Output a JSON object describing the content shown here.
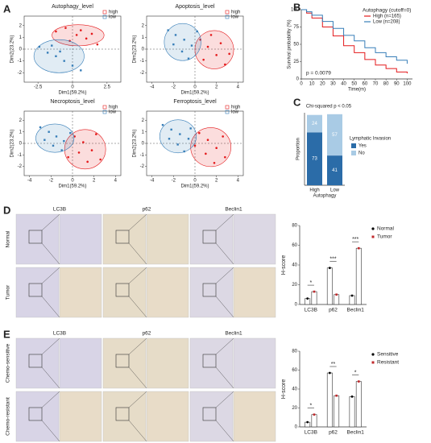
{
  "panels": [
    "A",
    "B",
    "C",
    "D",
    "E"
  ],
  "ihc": [
    {
      "columns": [
        "LC3B",
        "p62",
        "Beclin1"
      ],
      "rows": [
        "Normal",
        "Tumor"
      ]
    },
    {
      "columns": [
        "LC3B",
        "p62",
        "Beclin1"
      ],
      "rows": [
        "Chemo-sensitive",
        "Chemo-resistant"
      ]
    }
  ],
  "chart_data": [
    {
      "type": "scatter",
      "title": "Autophagy_level",
      "xlabel": "Dim1(59.2%)",
      "ylabel": "Dim2(23.2%)",
      "xlim": [
        -3.5,
        3.5
      ],
      "ylim": [
        -2.8,
        2.8
      ],
      "xticks": [
        -2.5,
        0,
        2.5
      ],
      "yticks": [
        -2,
        -1,
        0,
        1,
        2
      ],
      "series": [
        {
          "name": "high",
          "color": "#e41a1c",
          "x": [
            -1.2,
            -0.5,
            0.3,
            1,
            1.8,
            0.6,
            -0.2,
            1.4
          ],
          "values": [
            1.5,
            1.8,
            1.2,
            0.9,
            0.4,
            1.6,
            0.7,
            1.3
          ]
        },
        {
          "name": "low",
          "color": "#377eb8",
          "x": [
            -2.4,
            -1.8,
            -1.2,
            -0.6,
            0,
            0.6,
            -1.5,
            -0.9
          ],
          "values": [
            0.2,
            -0.3,
            -0.6,
            -1,
            -1.4,
            -1.8,
            0.3,
            -0.2
          ]
        }
      ]
    },
    {
      "type": "scatter",
      "title": "Apoptosis_level",
      "xlabel": "Dim1(59.2%)",
      "ylabel": "Dim2(23.2%)",
      "xlim": [
        -4.5,
        4.5
      ],
      "ylim": [
        -2.8,
        2.8
      ],
      "xticks": [
        -4,
        -2,
        0,
        2,
        4
      ],
      "yticks": [
        -2,
        -1,
        0,
        1,
        2
      ],
      "series": [
        {
          "name": "high",
          "color": "#e41a1c",
          "x": [
            0.5,
            1.2,
            2,
            2.8,
            1.5,
            0.8,
            2.4,
            3.2
          ],
          "values": [
            0.8,
            0.2,
            -0.5,
            -1.3,
            1.2,
            -0.9,
            0.5,
            -0.4
          ]
        },
        {
          "name": "low",
          "color": "#377eb8",
          "x": [
            -2.5,
            -1.8,
            -1,
            -0.3,
            -2,
            -1.2,
            0.2,
            -0.6
          ],
          "values": [
            1.6,
            1.2,
            0.8,
            0.3,
            0.4,
            -0.2,
            1.5,
            -0.8
          ]
        }
      ]
    },
    {
      "type": "scatter",
      "title": "Necroptosis_level",
      "xlabel": "Dim1(59.2%)",
      "ylabel": "Dim2(23.2%)",
      "xlim": [
        -4.5,
        4.5
      ],
      "ylim": [
        -2.8,
        2.8
      ],
      "xticks": [
        -4,
        -2,
        0,
        2,
        4
      ],
      "yticks": [
        -2,
        -1,
        0,
        1,
        2
      ],
      "series": [
        {
          "name": "high",
          "color": "#e41a1c",
          "x": [
            0.2,
            1,
            1.8,
            2.6,
            0.6,
            1.4,
            2.2,
            -0.4
          ],
          "values": [
            0.6,
            0.1,
            -0.6,
            -1.4,
            -0.8,
            -1.6,
            0.8,
            -1.2
          ]
        },
        {
          "name": "low",
          "color": "#377eb8",
          "x": [
            -3,
            -2.2,
            -1.5,
            -0.8,
            -2.6,
            -1.8,
            -0.2,
            -1
          ],
          "values": [
            1.4,
            1,
            0.6,
            0.2,
            0.3,
            -0.2,
            0.9,
            -0.6
          ]
        }
      ]
    },
    {
      "type": "scatter",
      "title": "Ferroptosis_level",
      "xlabel": "Dim1(59.2%)",
      "ylabel": "Dim2(23.2%)",
      "xlim": [
        -4.5,
        4.5
      ],
      "ylim": [
        -2.8,
        2.8
      ],
      "xticks": [
        -4,
        -2,
        0,
        2,
        4
      ],
      "yticks": [
        -2,
        -1,
        0,
        1,
        2
      ],
      "series": [
        {
          "name": "high",
          "color": "#e41a1c",
          "x": [
            0.4,
            1.2,
            2,
            2.8,
            1,
            1.8,
            2.6,
            0
          ],
          "values": [
            0.9,
            0.3,
            -0.4,
            -1.2,
            -0.9,
            -1.7,
            0.6,
            -0.2
          ]
        },
        {
          "name": "low",
          "color": "#377eb8",
          "x": [
            -3,
            -2.2,
            -1.4,
            -0.6,
            -2.4,
            -1.6,
            -0.4,
            -1
          ],
          "values": [
            1.6,
            1.2,
            0.8,
            0.4,
            0.4,
            -0.1,
            1.3,
            -0.7
          ]
        }
      ]
    },
    {
      "type": "step",
      "legend_title": "Autophagy (cutoff=0)",
      "xlabel": "Time(m)",
      "ylabel": "Survival probability (%)",
      "annotation": "p = 0.0079",
      "xlim": [
        0,
        105
      ],
      "ylim": [
        0,
        100
      ],
      "xticks": [
        0,
        10,
        20,
        30,
        40,
        50,
        60,
        70,
        80,
        90,
        100
      ],
      "yticks": [
        0,
        25,
        50,
        75,
        100
      ],
      "x": [
        0,
        5,
        10,
        20,
        30,
        40,
        50,
        60,
        70,
        80,
        90,
        100
      ],
      "series": [
        {
          "name": "High (n=165)",
          "color": "#e41a1c",
          "values": [
            100,
            95,
            88,
            75,
            62,
            48,
            38,
            28,
            20,
            15,
            10,
            8
          ]
        },
        {
          "name": "Low (n=208)",
          "color": "#377eb8",
          "values": [
            100,
            97,
            92,
            83,
            73,
            63,
            55,
            45,
            38,
            32,
            27,
            22
          ]
        }
      ]
    },
    {
      "type": "stacked_bar",
      "title": "Chi-squared p < 0.05",
      "xlabel": "Autophagy",
      "ylabel": "Proportion",
      "legend_title": "Lymphatic Invasion",
      "categories": [
        "High",
        "Low"
      ],
      "ylim": [
        0,
        100
      ],
      "series": [
        {
          "name": "Yes",
          "color": "#2b6ca8",
          "values": [
            73,
            41
          ]
        },
        {
          "name": "No",
          "color": "#a9cbe5",
          "values": [
            24,
            57
          ]
        }
      ]
    },
    {
      "type": "grouped_bar",
      "ylabel": "H-score",
      "categories": [
        "LC3B",
        "p62",
        "Beclin1"
      ],
      "significance": [
        "*",
        "***",
        "***"
      ],
      "ylim": [
        0,
        80
      ],
      "yticks": [
        0,
        20,
        40,
        60,
        80
      ],
      "series": [
        {
          "name": "Normal",
          "color": "#000000",
          "values": [
            6,
            37,
            9
          ]
        },
        {
          "name": "Tumor",
          "color": "#c0282b",
          "values": [
            13,
            10,
            57
          ]
        }
      ]
    },
    {
      "type": "grouped_bar",
      "ylabel": "H-score",
      "categories": [
        "LC3B",
        "p62",
        "Beclin1"
      ],
      "significance": [
        "*",
        "**",
        "*"
      ],
      "ylim": [
        0,
        80
      ],
      "yticks": [
        0,
        20,
        40,
        60,
        80
      ],
      "series": [
        {
          "name": "Sensitive",
          "color": "#000000",
          "values": [
            5,
            57,
            32
          ]
        },
        {
          "name": "Resistant",
          "color": "#c0282b",
          "values": [
            13,
            33,
            48
          ]
        }
      ]
    }
  ]
}
